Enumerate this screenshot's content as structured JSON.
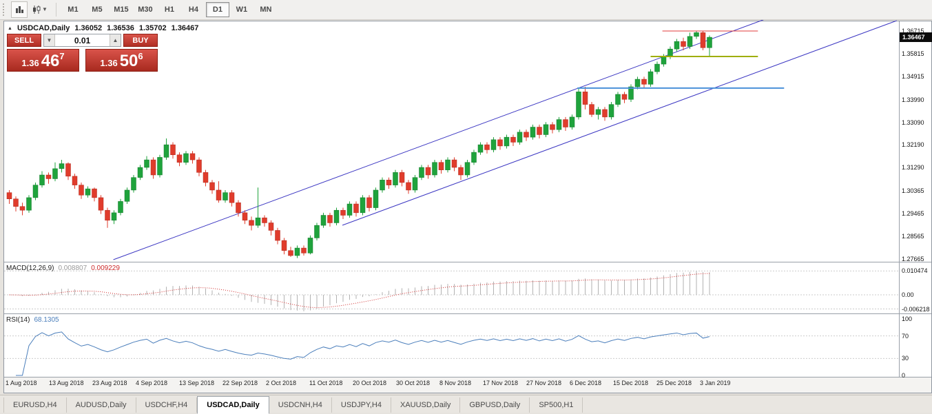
{
  "toolbar": {
    "timeframes": [
      "M1",
      "M5",
      "M15",
      "M30",
      "H1",
      "H4",
      "D1",
      "W1",
      "MN"
    ],
    "active_timeframe": "D1"
  },
  "chart": {
    "title": {
      "symbol": "USDCAD,Daily",
      "open": "1.36052",
      "high": "1.36536",
      "low": "1.35702",
      "close": "1.36467"
    },
    "trade_panel": {
      "sell_label": "SELL",
      "buy_label": "BUY",
      "volume": "0.01",
      "sell_price": {
        "big": "1.36",
        "mid": "46",
        "sup": "7"
      },
      "buy_price": {
        "big": "1.36",
        "mid": "50",
        "sup": "6"
      }
    },
    "price_axis": {
      "ticks": [
        "1.36715",
        "1.35815",
        "1.34915",
        "1.33990",
        "1.33090",
        "1.32190",
        "1.31290",
        "1.30365",
        "1.29465",
        "1.28565",
        "1.27665"
      ],
      "current": "1.36467"
    }
  },
  "macd": {
    "name": "MACD(12,26,9)",
    "value_main": "0.008807",
    "value_signal": "0.009229",
    "axis": [
      "0.010474",
      "0.00",
      "-0.006218"
    ]
  },
  "rsi": {
    "name": "RSI(14)",
    "value": "68.1305",
    "axis": [
      "100",
      "70",
      "30",
      "0"
    ]
  },
  "date_axis": {
    "labels": [
      "1 Aug 2018",
      "13 Aug 2018",
      "23 Aug 2018",
      "4 Sep 2018",
      "13 Sep 2018",
      "22 Sep 2018",
      "2 Oct 2018",
      "11 Oct 2018",
      "20 Oct 2018",
      "30 Oct 2018",
      "8 Nov 2018",
      "17 Nov 2018",
      "27 Nov 2018",
      "6 Dec 2018",
      "15 Dec 2018",
      "25 Dec 2018",
      "3 Jan 2019"
    ]
  },
  "tabs": {
    "items": [
      "EURUSD,H4",
      "AUDUSD,Daily",
      "USDCHF,H4",
      "USDCAD,Daily",
      "USDCNH,H4",
      "USDJPY,H4",
      "XAUUSD,Daily",
      "GBPUSD,Daily",
      "SP500,H1"
    ],
    "active": "USDCAD,Daily"
  },
  "chart_data": {
    "type": "candlestick",
    "symbol": "USDCAD",
    "timeframe": "Daily",
    "x_range": [
      "1 Aug 2018",
      "3 Jan 2019"
    ],
    "y_range": [
      1.27665,
      1.36715
    ],
    "candles": [
      [
        1.303,
        1.304,
        1.2985,
        1.3005
      ],
      [
        1.3005,
        1.3015,
        1.2955,
        1.2975
      ],
      [
        1.2975,
        1.299,
        1.294,
        1.296
      ],
      [
        1.296,
        1.302,
        1.295,
        1.301
      ],
      [
        1.301,
        1.307,
        1.3,
        1.306
      ],
      [
        1.306,
        1.3115,
        1.305,
        1.31
      ],
      [
        1.31,
        1.311,
        1.3065,
        1.3085
      ],
      [
        1.3085,
        1.315,
        1.3075,
        1.3125
      ],
      [
        1.3125,
        1.316,
        1.311,
        1.3145
      ],
      [
        1.3145,
        1.315,
        1.308,
        1.3095
      ],
      [
        1.3095,
        1.3105,
        1.3045,
        1.306
      ],
      [
        1.306,
        1.307,
        1.3005,
        1.302
      ],
      [
        1.302,
        1.3055,
        1.301,
        1.3045
      ],
      [
        1.3045,
        1.305,
        1.2995,
        1.301
      ],
      [
        1.301,
        1.302,
        1.2945,
        1.296
      ],
      [
        1.296,
        1.297,
        1.289,
        1.292
      ],
      [
        1.292,
        1.296,
        1.2905,
        1.295
      ],
      [
        1.295,
        1.3005,
        1.294,
        1.2995
      ],
      [
        1.2995,
        1.305,
        1.2985,
        1.304
      ],
      [
        1.304,
        1.31,
        1.303,
        1.309
      ],
      [
        1.309,
        1.314,
        1.308,
        1.313
      ],
      [
        1.313,
        1.3175,
        1.312,
        1.316
      ],
      [
        1.316,
        1.317,
        1.3085,
        1.31
      ],
      [
        1.31,
        1.318,
        1.309,
        1.317
      ],
      [
        1.317,
        1.3245,
        1.316,
        1.322
      ],
      [
        1.322,
        1.323,
        1.3165,
        1.318
      ],
      [
        1.318,
        1.319,
        1.3135,
        1.315
      ],
      [
        1.315,
        1.3195,
        1.314,
        1.3185
      ],
      [
        1.3185,
        1.3195,
        1.3145,
        1.316
      ],
      [
        1.316,
        1.317,
        1.3095,
        1.311
      ],
      [
        1.311,
        1.312,
        1.3055,
        1.307
      ],
      [
        1.307,
        1.308,
        1.3025,
        1.304
      ],
      [
        1.304,
        1.3075,
        1.299,
        1.3
      ],
      [
        1.3,
        1.304,
        1.299,
        1.303
      ],
      [
        1.303,
        1.304,
        1.2975,
        1.299
      ],
      [
        1.299,
        1.3,
        1.2935,
        1.295
      ],
      [
        1.295,
        1.296,
        1.2905,
        1.292
      ],
      [
        1.292,
        1.2935,
        1.288,
        1.29
      ],
      [
        1.29,
        1.305,
        1.289,
        1.293
      ],
      [
        1.293,
        1.294,
        1.2895,
        1.291
      ],
      [
        1.291,
        1.292,
        1.286,
        1.288
      ],
      [
        1.288,
        1.289,
        1.2825,
        1.284
      ],
      [
        1.284,
        1.285,
        1.2785,
        1.28
      ],
      [
        1.28,
        1.2815,
        1.2775,
        1.278
      ],
      [
        1.278,
        1.282,
        1.277,
        1.281
      ],
      [
        1.281,
        1.282,
        1.278,
        1.279
      ],
      [
        1.279,
        1.286,
        1.2785,
        1.285
      ],
      [
        1.285,
        1.291,
        1.284,
        1.29
      ],
      [
        1.29,
        1.295,
        1.289,
        1.294
      ],
      [
        1.294,
        1.295,
        1.2895,
        1.291
      ],
      [
        1.291,
        1.297,
        1.29,
        1.296
      ],
      [
        1.296,
        1.297,
        1.2925,
        1.294
      ],
      [
        1.294,
        1.2995,
        1.293,
        1.2985
      ],
      [
        1.2985,
        1.2995,
        1.2935,
        1.295
      ],
      [
        1.295,
        1.302,
        1.294,
        1.301
      ],
      [
        1.301,
        1.302,
        1.2955,
        1.297
      ],
      [
        1.297,
        1.305,
        1.296,
        1.304
      ],
      [
        1.304,
        1.309,
        1.303,
        1.308
      ],
      [
        1.308,
        1.309,
        1.3045,
        1.306
      ],
      [
        1.306,
        1.312,
        1.305,
        1.311
      ],
      [
        1.311,
        1.312,
        1.3055,
        1.307
      ],
      [
        1.307,
        1.308,
        1.3025,
        1.304
      ],
      [
        1.304,
        1.31,
        1.303,
        1.309
      ],
      [
        1.309,
        1.314,
        1.308,
        1.313
      ],
      [
        1.313,
        1.314,
        1.3085,
        1.31
      ],
      [
        1.31,
        1.316,
        1.309,
        1.315
      ],
      [
        1.315,
        1.316,
        1.3105,
        1.312
      ],
      [
        1.312,
        1.317,
        1.311,
        1.316
      ],
      [
        1.316,
        1.317,
        1.3115,
        1.313
      ],
      [
        1.313,
        1.314,
        1.308,
        1.31
      ],
      [
        1.31,
        1.316,
        1.309,
        1.315
      ],
      [
        1.315,
        1.32,
        1.314,
        1.319
      ],
      [
        1.319,
        1.323,
        1.318,
        1.322
      ],
      [
        1.322,
        1.323,
        1.3185,
        1.32
      ],
      [
        1.32,
        1.325,
        1.319,
        1.324
      ],
      [
        1.324,
        1.325,
        1.32,
        1.3215
      ],
      [
        1.3215,
        1.326,
        1.3205,
        1.325
      ],
      [
        1.325,
        1.326,
        1.3215,
        1.323
      ],
      [
        1.323,
        1.328,
        1.322,
        1.327
      ],
      [
        1.327,
        1.328,
        1.3235,
        1.325
      ],
      [
        1.325,
        1.33,
        1.324,
        1.329
      ],
      [
        1.329,
        1.33,
        1.3245,
        1.326
      ],
      [
        1.326,
        1.331,
        1.325,
        1.33
      ],
      [
        1.33,
        1.331,
        1.3265,
        1.328
      ],
      [
        1.328,
        1.333,
        1.327,
        1.332
      ],
      [
        1.332,
        1.333,
        1.3275,
        1.329
      ],
      [
        1.329,
        1.334,
        1.328,
        1.333
      ],
      [
        1.333,
        1.3445,
        1.332,
        1.343
      ],
      [
        1.343,
        1.345,
        1.336,
        1.338
      ],
      [
        1.338,
        1.339,
        1.333,
        1.334
      ],
      [
        1.334,
        1.337,
        1.332,
        1.336
      ],
      [
        1.336,
        1.337,
        1.3315,
        1.333
      ],
      [
        1.333,
        1.339,
        1.332,
        1.338
      ],
      [
        1.338,
        1.343,
        1.337,
        1.342
      ],
      [
        1.342,
        1.343,
        1.3385,
        1.34
      ],
      [
        1.34,
        1.346,
        1.339,
        1.345
      ],
      [
        1.345,
        1.349,
        1.344,
        1.348
      ],
      [
        1.348,
        1.349,
        1.3445,
        1.346
      ],
      [
        1.346,
        1.352,
        1.345,
        1.351
      ],
      [
        1.351,
        1.355,
        1.35,
        1.354
      ],
      [
        1.354,
        1.358,
        1.353,
        1.357
      ],
      [
        1.357,
        1.361,
        1.356,
        1.36
      ],
      [
        1.36,
        1.364,
        1.359,
        1.363
      ],
      [
        1.363,
        1.3645,
        1.3595,
        1.361
      ],
      [
        1.361,
        1.3665,
        1.36,
        1.365
      ],
      [
        1.365,
        1.3672,
        1.364,
        1.3665
      ],
      [
        1.3665,
        1.367,
        1.3595,
        1.3605
      ],
      [
        1.36052,
        1.36536,
        1.35702,
        1.36467
      ]
    ],
    "indicators": {
      "macd": {
        "fast": 12,
        "slow": 26,
        "signal": 9,
        "current_main": 0.008807,
        "current_signal": 0.009229,
        "scale_max": 0.010474,
        "scale_min": -0.006218
      },
      "rsi": {
        "period": 14,
        "current": 68.1305,
        "levels": [
          70,
          30
        ]
      }
    },
    "annotations": {
      "trendlines": [
        {
          "label": "channel-line-1",
          "i1": 15.9,
          "p1": 1.27637,
          "i2": 116.3,
          "p2": 1.37262,
          "color": "#3a35c2",
          "width": 1
        },
        {
          "label": "channel-line-2",
          "i1": 50.9,
          "p1": 1.29004,
          "i2": 135.6,
          "p2": 1.37125,
          "color": "#3a35c2",
          "width": 1
        }
      ],
      "hlines": [
        {
          "label": "resistance-red",
          "price": 1.36715,
          "i1": 99.8,
          "i2": 114.4,
          "color": "#e23b3b",
          "width": 1
        },
        {
          "label": "support-olive",
          "price": 1.35702,
          "i1": 98.0,
          "i2": 114.4,
          "color": "#9fae00",
          "width": 2
        },
        {
          "label": "support-blue",
          "price": 1.3445,
          "i1": 86.8,
          "i2": 118.4,
          "color": "#4a90d9",
          "width": 2
        }
      ]
    },
    "colors": {
      "up": "#1fa33c",
      "up_border": "#157a2b",
      "down": "#e03c2c",
      "down_border": "#b02a1e",
      "macd_hist": "#b2b2b2",
      "macd_signal": "#d02a2a",
      "rsi_line": "#4a7ebb",
      "grid_dash": "#cbcbcb"
    }
  }
}
